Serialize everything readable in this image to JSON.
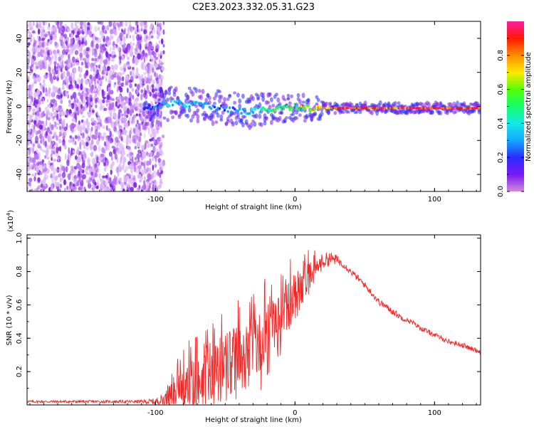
{
  "figure_title": "C2E3.2023.332.05.31.G23",
  "colors": {
    "snr_line": "#ee2a2a",
    "scatter_light": "#dcb8f6",
    "scatter_mid": "#b36cf0",
    "scatter_dark": "#7b1ee6",
    "colorbar": [
      "#d08ad8",
      "#7a18f0",
      "#2a2cff",
      "#14a8ff",
      "#15e8e8",
      "#14ff6a",
      "#54ff08",
      "#ffea00",
      "#ff8c00",
      "#ff1a00",
      "#ff1aa0"
    ]
  },
  "chart_data": [
    {
      "type": "heatmap",
      "name": "spectrogram",
      "xlabel": "Height of straight line (km)",
      "ylabel": "Frequency (Hz)",
      "xlim": [
        -192,
        133
      ],
      "ylim": [
        -50,
        50
      ],
      "xticks": [
        -100,
        0,
        100
      ],
      "xtick_labels": [
        "-100",
        "0",
        "100"
      ],
      "yticks": [
        -40,
        -20,
        0,
        20,
        40
      ],
      "ytick_labels": [
        "-40",
        "-20",
        "0",
        "20",
        "40"
      ],
      "ridge_x": [
        -105,
        -95,
        -85,
        -75,
        -65,
        -55,
        -45,
        -35,
        -25,
        -15,
        -5,
        0,
        5,
        10,
        20,
        30,
        50,
        70,
        90,
        110,
        133
      ],
      "ridge_freq": [
        -1,
        1,
        2,
        1,
        1,
        -1,
        -2,
        -3,
        -2,
        -1,
        -1,
        0,
        -1,
        -1,
        -1,
        -1,
        -1,
        -1,
        -1,
        -1,
        -1
      ],
      "ridge_amplitude": [
        0.2,
        0.35,
        0.4,
        0.4,
        0.35,
        0.3,
        0.3,
        0.35,
        0.45,
        0.55,
        0.6,
        0.6,
        0.7,
        0.75,
        0.9,
        0.95,
        0.95,
        0.95,
        0.95,
        0.95,
        0.95
      ],
      "noise_region_x": [
        -192,
        -100
      ],
      "colorbar": {
        "label": "Normalized spectral amplitude",
        "range": [
          0,
          1
        ],
        "ticks": [
          0.0,
          0.2,
          0.4,
          0.6,
          0.8
        ],
        "tick_labels": [
          "0.0",
          "0.2",
          "0.4",
          "0.6",
          "0.8"
        ]
      }
    },
    {
      "type": "line",
      "name": "snr",
      "xlabel": "Height of straight line (km)",
      "ylabel": "SNR (10 * v/v)",
      "scale_label": "(x10",
      "scale_exponent": "4",
      "scale_close": ")",
      "xlim": [
        -192,
        133
      ],
      "ylim": [
        0,
        1.02
      ],
      "xticks": [
        -100,
        0,
        100
      ],
      "xtick_labels": [
        "-100",
        "0",
        "100"
      ],
      "yticks": [
        0.2,
        0.4,
        0.6,
        0.8,
        1.0
      ],
      "ytick_labels": [
        "0.2",
        "0.4",
        "0.6",
        "0.8",
        "1.0"
      ],
      "series": [
        {
          "name": "SNR",
          "x": [
            -192,
            -170,
            -150,
            -130,
            -110,
            -100,
            -95,
            -90,
            -85,
            -80,
            -75,
            -70,
            -65,
            -60,
            -55,
            -50,
            -45,
            -40,
            -35,
            -30,
            -25,
            -20,
            -15,
            -10,
            -5,
            0,
            5,
            10,
            15,
            20,
            25,
            30,
            35,
            40,
            45,
            50,
            55,
            60,
            65,
            70,
            75,
            80,
            85,
            90,
            95,
            100,
            105,
            110,
            115,
            120,
            125,
            133
          ],
          "base": [
            0.02,
            0.02,
            0.02,
            0.02,
            0.02,
            0.02,
            0.03,
            0.04,
            0.06,
            0.08,
            0.1,
            0.12,
            0.15,
            0.17,
            0.2,
            0.22,
            0.24,
            0.26,
            0.28,
            0.3,
            0.32,
            0.36,
            0.42,
            0.5,
            0.58,
            0.64,
            0.7,
            0.75,
            0.82,
            0.86,
            0.88,
            0.87,
            0.84,
            0.8,
            0.76,
            0.72,
            0.67,
            0.62,
            0.59,
            0.56,
            0.53,
            0.51,
            0.49,
            0.46,
            0.44,
            0.42,
            0.4,
            0.38,
            0.37,
            0.36,
            0.34,
            0.32
          ],
          "noise": [
            0.008,
            0.008,
            0.008,
            0.008,
            0.01,
            0.02,
            0.04,
            0.07,
            0.12,
            0.15,
            0.17,
            0.18,
            0.18,
            0.18,
            0.2,
            0.22,
            0.22,
            0.22,
            0.23,
            0.25,
            0.25,
            0.25,
            0.22,
            0.2,
            0.18,
            0.14,
            0.12,
            0.1,
            0.06,
            0.05,
            0.04,
            0.03,
            0.02,
            0.02,
            0.02,
            0.02,
            0.02,
            0.02,
            0.02,
            0.02,
            0.02,
            0.015,
            0.015,
            0.015,
            0.015,
            0.015,
            0.015,
            0.015,
            0.015,
            0.015,
            0.015,
            0.015
          ]
        }
      ]
    }
  ]
}
